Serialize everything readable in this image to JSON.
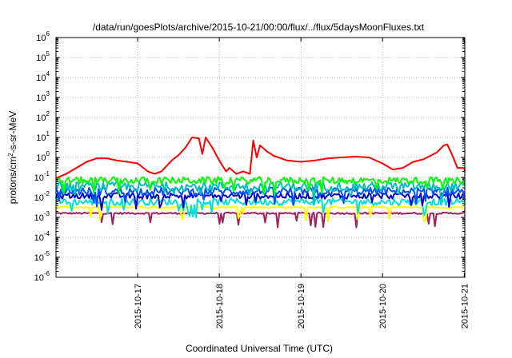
{
  "chart_data": {
    "type": "line",
    "title": "/data/run/goesPlots/archive/2015-10-21/00:00/flux/../flux/5daysMoonFluxes.txt",
    "xlabel": "Coordinated Universal Time (UTC)",
    "ylabel": {
      "prefix": "protons/cm",
      "sup": "2",
      "suffix": "-s-sr-MeV"
    },
    "yscale": "log",
    "ylim": [
      1e-06,
      1000000.0
    ],
    "xlim": [
      "2015-10-16T00:00",
      "2015-10-21T00:10"
    ],
    "grid": true,
    "y_ticks": [
      {
        "value": 1e-06,
        "base": "10",
        "exp": "-6"
      },
      {
        "value": 1e-05,
        "base": "10",
        "exp": "-5"
      },
      {
        "value": 0.0001,
        "base": "10",
        "exp": "-4"
      },
      {
        "value": 0.001,
        "base": "10",
        "exp": "-3"
      },
      {
        "value": 0.01,
        "base": "10",
        "exp": "-2"
      },
      {
        "value": 0.1,
        "base": "10",
        "exp": "-1"
      },
      {
        "value": 1,
        "base": "10",
        "exp": "0"
      },
      {
        "value": 10,
        "base": "10",
        "exp": "1"
      },
      {
        "value": 100,
        "base": "10",
        "exp": "2"
      },
      {
        "value": 1000,
        "base": "10",
        "exp": "3"
      },
      {
        "value": 10000,
        "base": "10",
        "exp": "4"
      },
      {
        "value": 100000,
        "base": "10",
        "exp": "5"
      },
      {
        "value": 1000000,
        "base": "10",
        "exp": "6"
      }
    ],
    "x_ticks": [
      {
        "value": "2015-10-17T00:00",
        "label": "2015-10-17"
      },
      {
        "value": "2015-10-18T00:00",
        "label": "2015-10-18"
      },
      {
        "value": "2015-10-19T00:00",
        "label": "2015-10-19"
      },
      {
        "value": "2015-10-20T00:00",
        "label": "2015-10-20"
      },
      {
        "value": "2015-10-21T00:00",
        "label": "2015-10-21"
      }
    ],
    "series": [
      {
        "color": "#ff0000",
        "points": [
          [
            "2015-10-16T00:00",
            0.09
          ],
          [
            "2015-10-16T03:00",
            0.15
          ],
          [
            "2015-10-16T06:00",
            0.3
          ],
          [
            "2015-10-16T09:00",
            0.6
          ],
          [
            "2015-10-16T12:00",
            0.9
          ],
          [
            "2015-10-16T15:00",
            0.9
          ],
          [
            "2015-10-16T18:00",
            0.7
          ],
          [
            "2015-10-16T21:00",
            0.6
          ],
          [
            "2015-10-17T00:00",
            0.5
          ],
          [
            "2015-10-17T03:00",
            0.2
          ],
          [
            "2015-10-17T05:00",
            0.15
          ],
          [
            "2015-10-17T07:00",
            0.2
          ],
          [
            "2015-10-17T10:00",
            0.7
          ],
          [
            "2015-10-17T12:00",
            1.3
          ],
          [
            "2015-10-17T14:00",
            3
          ],
          [
            "2015-10-17T16:00",
            10
          ],
          [
            "2015-10-17T18:00",
            9
          ],
          [
            "2015-10-17T19:00",
            1.5
          ],
          [
            "2015-10-17T20:00",
            10
          ],
          [
            "2015-10-17T22:00",
            3
          ],
          [
            "2015-10-18T00:00",
            0.7
          ],
          [
            "2015-10-18T02:00",
            0.2
          ],
          [
            "2015-10-18T03:00",
            0.3
          ],
          [
            "2015-10-18T05:00",
            0.15
          ],
          [
            "2015-10-18T07:00",
            0.2
          ],
          [
            "2015-10-18T09:00",
            0.15
          ],
          [
            "2015-10-18T10:00",
            7
          ],
          [
            "2015-10-18T11:00",
            1.0
          ],
          [
            "2015-10-18T12:00",
            4
          ],
          [
            "2015-10-18T14:00",
            2
          ],
          [
            "2015-10-18T16:00",
            1.2
          ],
          [
            "2015-10-18T20:00",
            0.7
          ],
          [
            "2015-10-19T00:00",
            0.6
          ],
          [
            "2015-10-19T04:00",
            0.7
          ],
          [
            "2015-10-19T08:00",
            0.9
          ],
          [
            "2015-10-19T12:00",
            1.0
          ],
          [
            "2015-10-19T16:00",
            1.1
          ],
          [
            "2015-10-19T20:00",
            1.0
          ],
          [
            "2015-10-20T00:00",
            0.5
          ],
          [
            "2015-10-20T03:00",
            0.25
          ],
          [
            "2015-10-20T06:00",
            0.3
          ],
          [
            "2015-10-20T09:00",
            0.6
          ],
          [
            "2015-10-20T12:00",
            0.8
          ],
          [
            "2015-10-20T14:00",
            1.2
          ],
          [
            "2015-10-20T16:00",
            1.8
          ],
          [
            "2015-10-20T18:00",
            4
          ],
          [
            "2015-10-20T19:00",
            4.5
          ],
          [
            "2015-10-20T20:00",
            2
          ],
          [
            "2015-10-20T21:00",
            0.8
          ],
          [
            "2015-10-20T22:00",
            0.3
          ],
          [
            "2015-10-21T00:00",
            0.3
          ],
          [
            "2015-10-21T00:10",
            0.2
          ]
        ]
      },
      {
        "color": "#00ff00",
        "base": 0.07,
        "amp": 0.35
      },
      {
        "color": "#00bfbf",
        "base": 0.035,
        "amp": 0.45
      },
      {
        "color": "#0050ff",
        "base": 0.02,
        "amp": 0.4
      },
      {
        "color": "#0000cc",
        "base": 0.012,
        "amp": 0.3
      },
      {
        "color": "#00e0e0",
        "base": 0.006,
        "amp": 0.35
      },
      {
        "color": "#ffff00",
        "base": 0.0032,
        "amp": 0.1
      },
      {
        "color": "#a02060",
        "base": 0.0016,
        "amp": 0.08
      }
    ]
  }
}
